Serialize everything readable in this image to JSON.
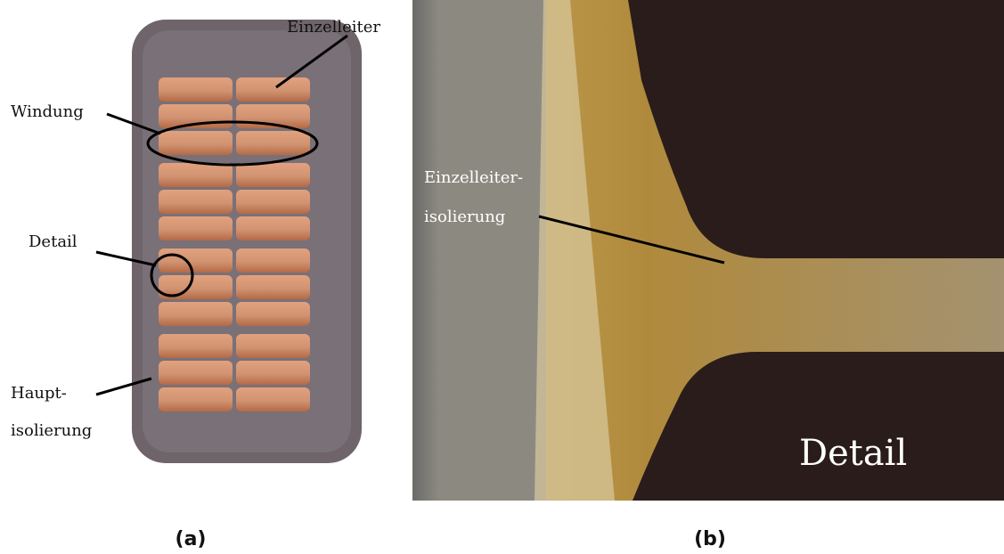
{
  "panels": [
    {
      "label": "(a)",
      "annotations": [
        "Einzelleiter",
        "Windung",
        "Detail",
        "Haupt-",
        "isolierung"
      ]
    },
    {
      "label": "(b)",
      "annotations": [
        "Einzelleiter-",
        "isolierung",
        "Detail"
      ]
    }
  ]
}
